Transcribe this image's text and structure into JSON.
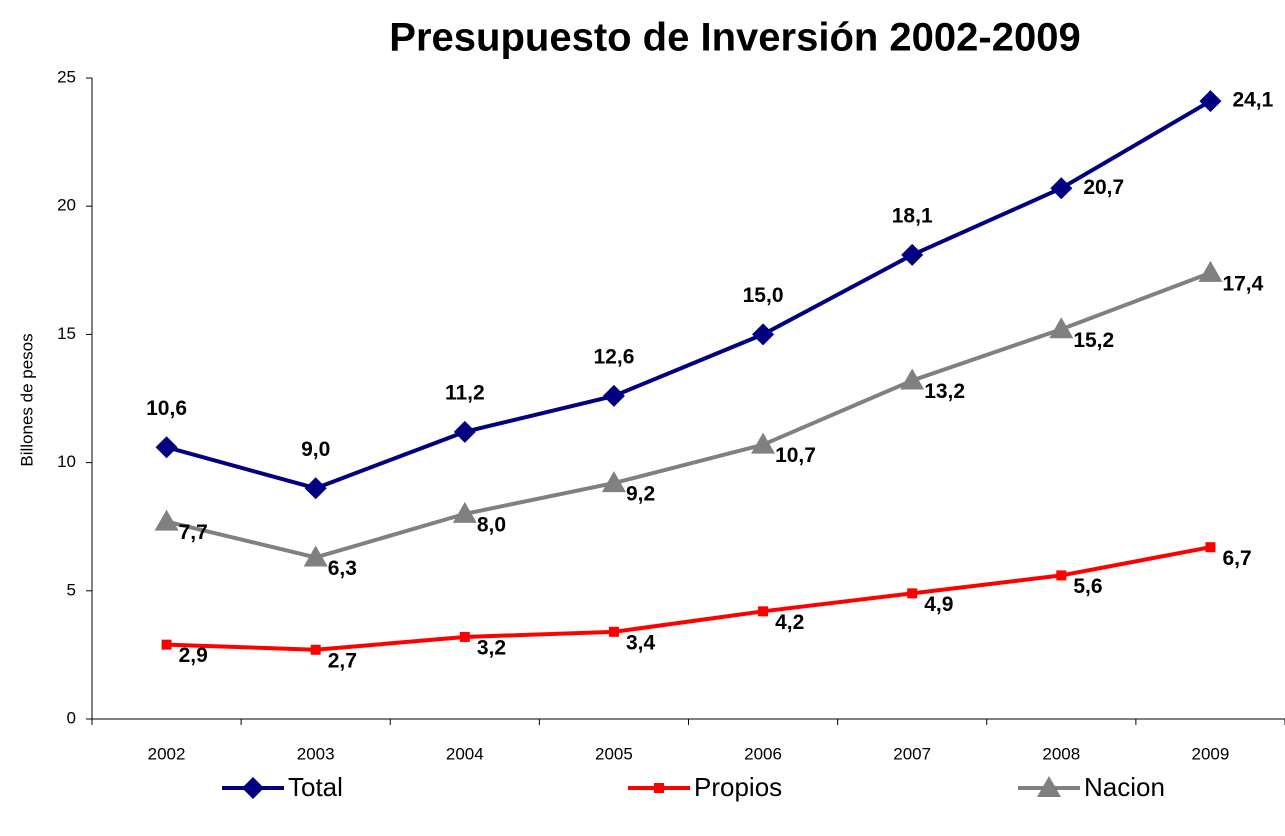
{
  "chart_data": {
    "type": "line",
    "title": "Presupuesto de Inversión 2002-2009",
    "y_label": "Billones de pesos",
    "categories": [
      "2002",
      "2003",
      "2004",
      "2005",
      "2006",
      "2007",
      "2008",
      "2009"
    ],
    "ylim": [
      0,
      25
    ],
    "yticks": [
      0,
      5,
      10,
      15,
      20,
      25
    ],
    "legend": "bottom",
    "series": [
      {
        "name": "Total",
        "color": "#000080",
        "marker": "diamond",
        "values": [
          10.6,
          9.0,
          11.2,
          12.6,
          15.0,
          18.1,
          20.7,
          24.1
        ],
        "value_labels": [
          "10,6",
          "9,0",
          "11,2",
          "12,6",
          "15,0",
          "18,1",
          "20,7",
          "24,1"
        ]
      },
      {
        "name": "Propios",
        "color": "#ff0000",
        "marker": "square",
        "values": [
          2.9,
          2.7,
          3.2,
          3.4,
          4.2,
          4.9,
          5.6,
          6.7
        ],
        "value_labels": [
          "2,9",
          "2,7",
          "3,2",
          "3,4",
          "4,2",
          "4,9",
          "5,6",
          "6,7"
        ]
      },
      {
        "name": "Nacion",
        "color": "#808080",
        "marker": "triangle",
        "values": [
          7.7,
          6.3,
          8.0,
          9.2,
          10.7,
          13.2,
          15.2,
          17.4
        ],
        "value_labels": [
          "7,7",
          "6,3",
          "8,0",
          "9,2",
          "10,7",
          "13,2",
          "15,2",
          "17,4"
        ]
      }
    ]
  }
}
